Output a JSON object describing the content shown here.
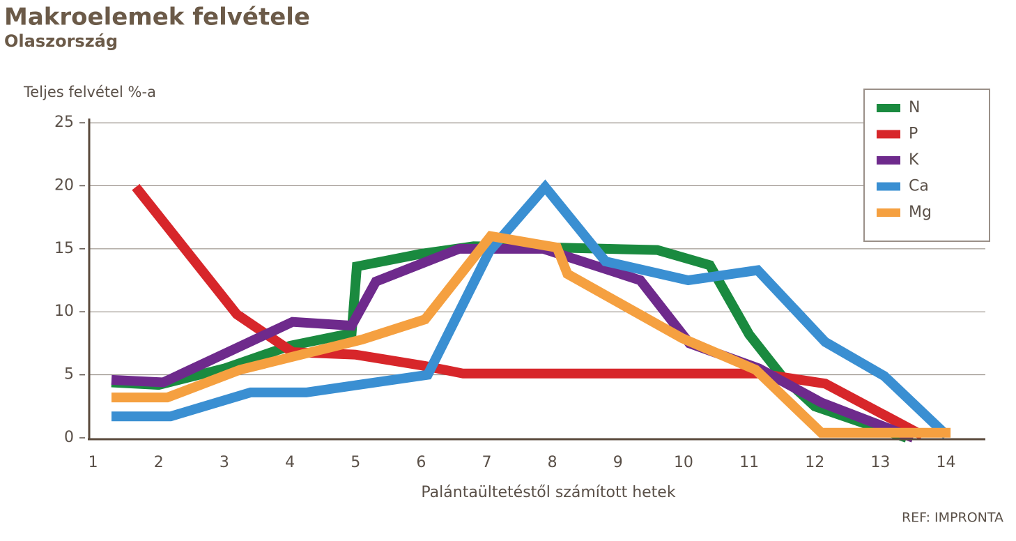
{
  "chart_data": {
    "type": "line",
    "title": "Makroelemek felvétele",
    "subtitle": "Olaszország",
    "y_label": "Teljes felvétel %-a",
    "x_label": "Palántaültetéstől számított hetek",
    "source": "REF: IMPRONTA",
    "xlim": [
      0.94,
      14.6
    ],
    "xticks": [
      1,
      2,
      3,
      4,
      5,
      6,
      7,
      8,
      9,
      10,
      11,
      12,
      13,
      14
    ],
    "ylim": [
      0,
      26
    ],
    "yticks": [
      0,
      5,
      10,
      15,
      20,
      25
    ],
    "grid": true,
    "legend": "upper right",
    "series": [
      {
        "name": "N",
        "color": "#1a8a3f",
        "x": [
          1.28,
          2,
          3,
          4,
          4.94,
          5.02,
          6,
          6.8,
          8,
          9.6,
          10.4,
          11,
          11.5,
          12,
          13.4
        ],
        "values": [
          4.4,
          4.2,
          5.5,
          7.3,
          8.3,
          13.6,
          14.6,
          15.2,
          15.1,
          14.9,
          13.7,
          8.2,
          4.9,
          2.5,
          0
        ]
      },
      {
        "name": "P",
        "color": "#d7262a",
        "x": [
          1.65,
          3.19,
          4.04,
          5,
          6.06,
          6.64,
          11.15,
          12.16,
          13.64
        ],
        "values": [
          19.9,
          9.8,
          6.8,
          6.6,
          5.7,
          5.1,
          5.1,
          4.3,
          0.2
        ]
      },
      {
        "name": "K",
        "color": "#6e2a8c",
        "x": [
          1.28,
          2.07,
          4.04,
          4.94,
          5.31,
          6.58,
          7.86,
          9.34,
          10.09,
          11.15,
          12.1,
          13.5
        ],
        "values": [
          4.6,
          4.4,
          9.2,
          8.9,
          12.4,
          15,
          15,
          12.5,
          7.5,
          5.5,
          2.8,
          0
        ]
      },
      {
        "name": "Ca",
        "color": "#3a8fd2",
        "x": [
          1.28,
          2.18,
          3.4,
          4.25,
          6.1,
          7.04,
          7.89,
          8.81,
          10.07,
          11.13,
          12.16,
          13.06,
          14.01
        ],
        "values": [
          1.7,
          1.7,
          3.6,
          3.6,
          5,
          14.8,
          19.9,
          14,
          12.5,
          13.3,
          7.6,
          4.9,
          0.2
        ]
      },
      {
        "name": "Mg",
        "color": "#f5a040",
        "x": [
          1.28,
          2.13,
          3.24,
          5.1,
          6.06,
          7.06,
          8.07,
          8.23,
          9.98,
          11.1,
          12.1,
          13.16,
          14.07
        ],
        "values": [
          3.2,
          3.2,
          5.4,
          7.8,
          9.4,
          16,
          15.1,
          13,
          7.9,
          5.4,
          0.4,
          0.4,
          0.4
        ]
      }
    ]
  }
}
